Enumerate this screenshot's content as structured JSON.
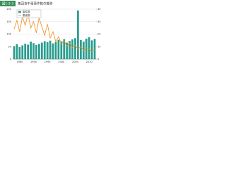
{
  "chart_data": {
    "type": "bar",
    "label": "図1-2-3",
    "title": "集団食中毒事件数の推移",
    "categories": [
      null,
      null,
      "1985",
      null,
      null,
      null,
      null,
      "1990",
      null,
      null,
      null,
      null,
      "1995",
      null,
      null,
      null,
      null,
      "2000",
      null,
      null,
      null,
      null,
      "2005",
      null,
      null,
      null,
      null,
      "2010",
      null,
      null
    ],
    "series": [
      {
        "name": "事件数",
        "type": "bar",
        "axis": "y",
        "color": "#2a9d8f",
        "values": [
          52,
          60,
          48,
          55,
          62,
          58,
          70,
          64,
          57,
          61,
          66,
          72,
          68,
          74,
          63,
          69,
          77,
          71,
          80,
          66,
          73,
          79,
          84,
          195,
          76,
          70,
          82,
          88,
          75,
          81
        ]
      },
      {
        "name": "患者数",
        "type": "line",
        "axis": "y2",
        "color": "#f08c1e",
        "values": [
          24,
          31,
          22,
          34,
          27,
          36,
          25,
          30,
          21,
          33,
          26,
          19,
          28,
          17,
          22,
          14,
          18,
          12,
          15,
          10,
          13,
          9,
          11,
          8,
          10,
          7,
          9,
          8,
          6,
          7
        ]
      }
    ],
    "ylim": [
      0,
      200
    ],
    "yticks": [
      0,
      50,
      100,
      150,
      200
    ],
    "y2lim": [
      0,
      40
    ],
    "y2ticks": [
      0,
      10,
      20,
      30,
      40
    ],
    "grid": true,
    "legend": "top-left"
  }
}
